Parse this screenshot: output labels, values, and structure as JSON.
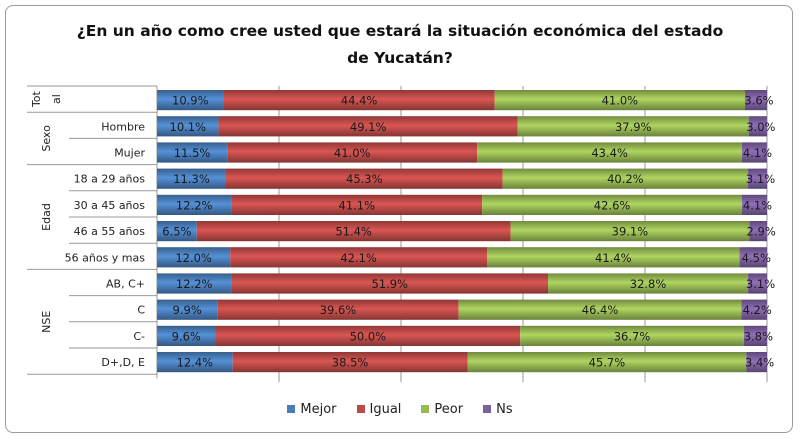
{
  "chart_data": {
    "type": "bar",
    "orientation": "horizontal",
    "stacked": "100%",
    "title": "¿En un año como cree usted que estará la situación económica del estado de Yucatán?",
    "title_lines": [
      "¿En un año como cree usted que estará la situación económica del estado",
      "de Yucatán?"
    ],
    "groups": [
      {
        "name": "Tot al",
        "rows": [
          "Total"
        ]
      },
      {
        "name": "Sexo",
        "rows": [
          "Hombre",
          "Mujer"
        ]
      },
      {
        "name": "Edad",
        "rows": [
          "18 a 29 años",
          "30 a 45 años",
          "46 a 55 años",
          "56 años y mas"
        ]
      },
      {
        "name": "NSE",
        "rows": [
          "AB, C+",
          "C",
          "C-",
          "D+,D, E"
        ]
      }
    ],
    "categories": [
      "",
      "Hombre",
      "Mujer",
      "18 a 29 años",
      "30 a 45 años",
      "46 a 55 años",
      "56 años y mas",
      "AB, C+",
      "C",
      "C-",
      "D+,D, E"
    ],
    "series": [
      {
        "name": "Mejor",
        "color": "#4a7ebb",
        "values": [
          10.9,
          10.1,
          11.5,
          11.3,
          12.2,
          6.5,
          12.0,
          12.2,
          9.9,
          9.6,
          12.4
        ]
      },
      {
        "name": "Igual",
        "color": "#be4b48",
        "values": [
          44.4,
          49.1,
          41.0,
          45.3,
          41.1,
          51.4,
          42.1,
          51.9,
          39.6,
          50.0,
          38.5
        ]
      },
      {
        "name": "Peor",
        "color": "#98b954",
        "values": [
          41.0,
          37.9,
          43.4,
          40.2,
          42.6,
          39.1,
          41.4,
          32.8,
          46.4,
          36.7,
          45.7
        ]
      },
      {
        "name": "Ns",
        "color": "#7d60a0",
        "values": [
          3.6,
          3.0,
          4.1,
          3.1,
          4.1,
          2.9,
          4.5,
          3.1,
          4.2,
          3.8,
          3.4
        ]
      }
    ],
    "value_format": "percent, 1 decimal",
    "xlim": [
      0,
      100
    ],
    "grid": "vertical every 20%",
    "legend": "bottom"
  }
}
